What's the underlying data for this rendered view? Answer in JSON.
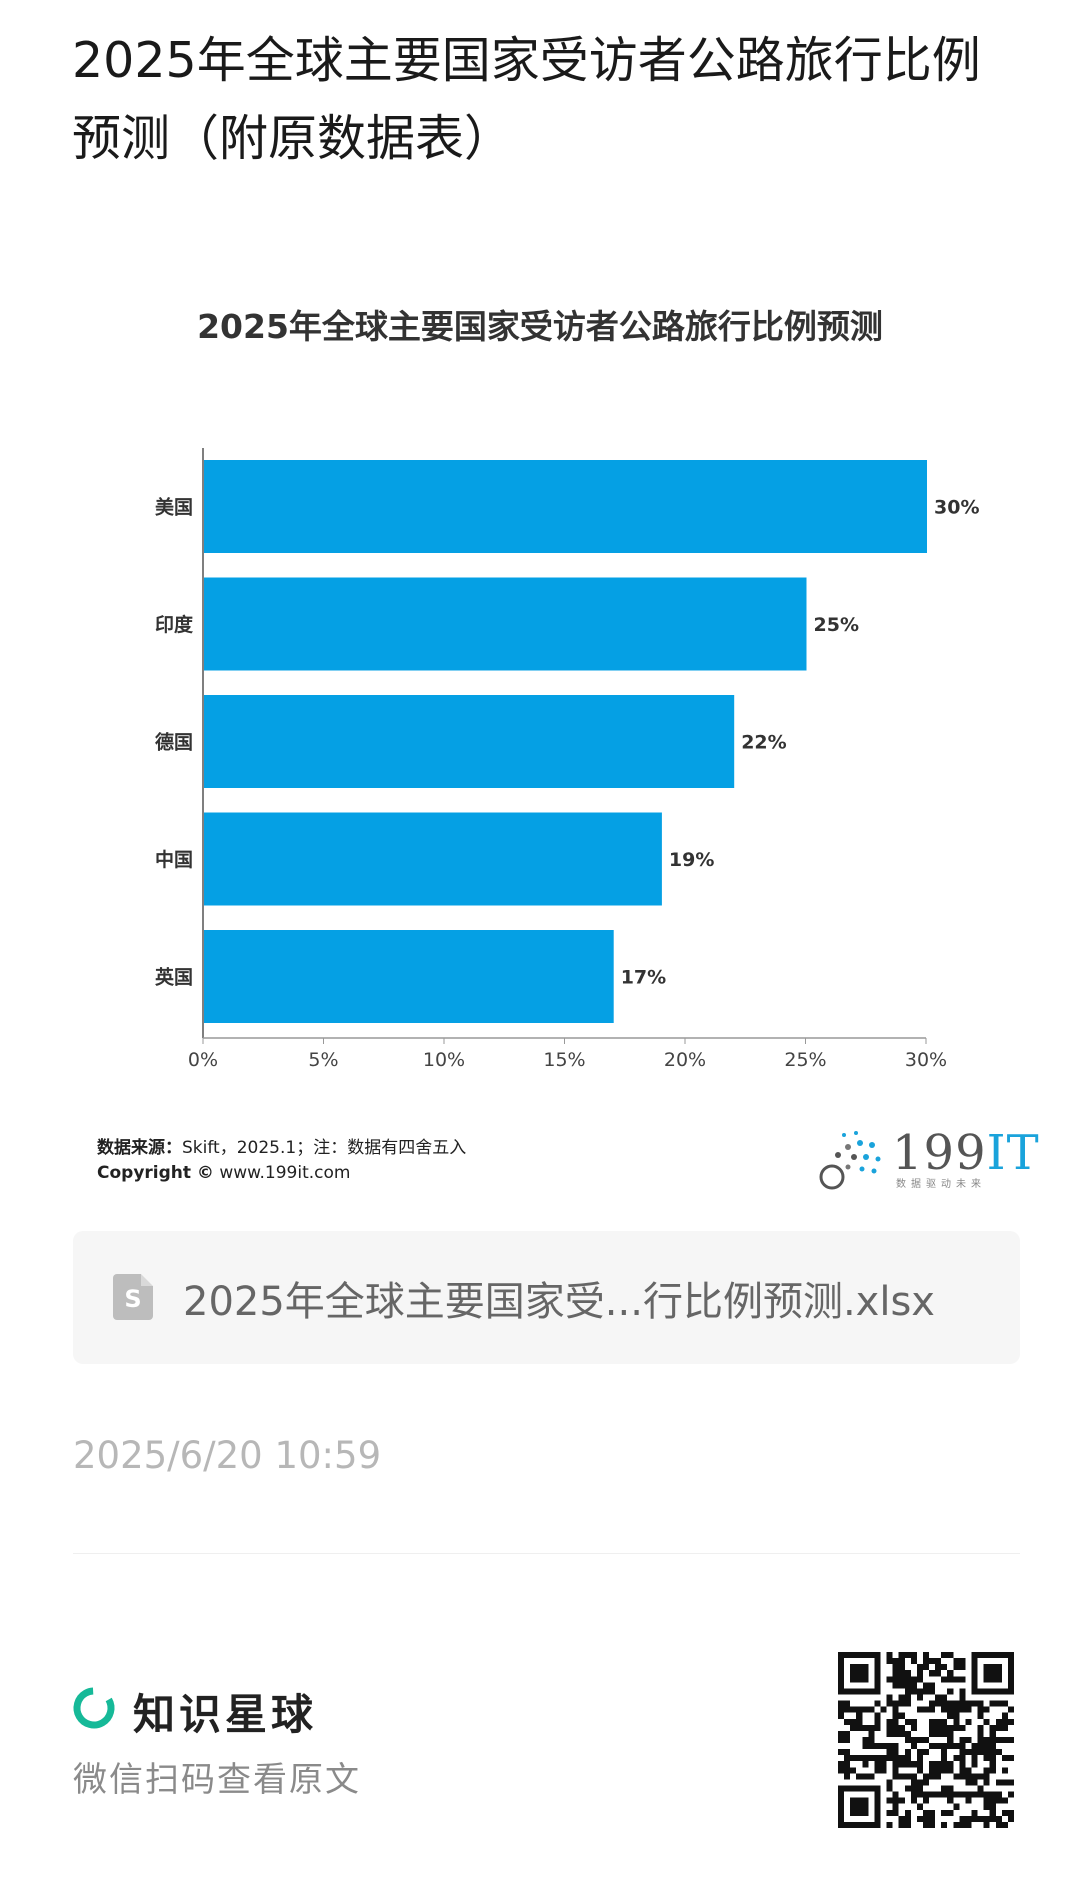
{
  "post": {
    "title": "2025年全球主要国家受访者公路旅行比例预测（附原数据表）",
    "date": "2025/6/20 10:59"
  },
  "chart_data": {
    "type": "bar",
    "orientation": "horizontal",
    "title": "2025年全球主要国家受访者公路旅行比例预测",
    "categories": [
      "美国",
      "印度",
      "德国",
      "中国",
      "英国"
    ],
    "values": [
      30,
      25,
      22,
      19,
      17
    ],
    "value_labels": [
      "30%",
      "25%",
      "22%",
      "19%",
      "17%"
    ],
    "x_ticks": [
      "0%",
      "5%",
      "10%",
      "15%",
      "20%",
      "25%",
      "30%"
    ],
    "xlim": [
      0,
      30
    ],
    "bar_color": "#05a0e4",
    "grid": false,
    "xlabel": "",
    "ylabel": ""
  },
  "source": {
    "label": "数据来源：",
    "text": "Skift，2025.1；注：数据有四舍五入",
    "copyright_label": "Copyright ©",
    "copyright_url": "www.199it.com"
  },
  "logo": {
    "number": "199",
    "suffix": "IT",
    "slogan": "数据驱动未来",
    "accent": "#1aa3db"
  },
  "attachment": {
    "icon": "spreadsheet-file-icon",
    "icon_letter": "S",
    "filename": "2025年全球主要国家受...行比例预测.xlsx"
  },
  "footer": {
    "brand_icon": "zsxq-ring-icon",
    "brand_name": "知识星球",
    "hint": "微信扫码查看原文",
    "brand_color": "#16b998"
  }
}
